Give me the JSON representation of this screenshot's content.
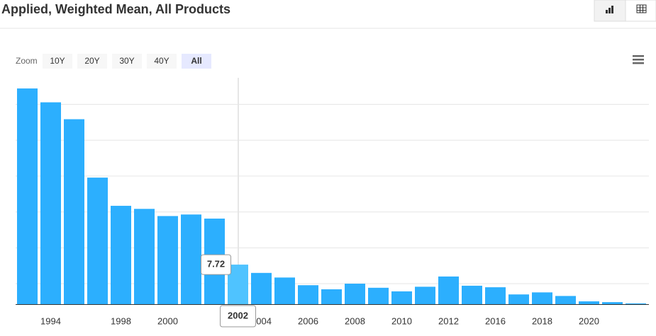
{
  "chart_data": {
    "type": "bar",
    "title": "Applied, Weighted Mean, All Products",
    "zoom_label": "Zoom",
    "zoom_buttons": [
      "10Y",
      "20Y",
      "30Y",
      "40Y",
      "All"
    ],
    "zoom_active": 4,
    "categories": [
      null,
      "1994",
      null,
      null,
      "1998",
      null,
      "2000",
      null,
      null,
      "2002",
      "2004",
      null,
      "2006",
      null,
      "2008",
      null,
      "2010",
      null,
      "2012",
      null,
      "2016",
      null,
      "2018",
      null,
      "2020",
      null,
      null
    ],
    "values": [
      42.1,
      39.4,
      36.1,
      24.7,
      19.2,
      18.6,
      17.2,
      17.5,
      16.7,
      7.72,
      6.1,
      5.2,
      3.7,
      2.9,
      4.0,
      3.2,
      2.5,
      3.4,
      5.4,
      3.6,
      3.3,
      1.9,
      2.3,
      1.6,
      0.55,
      0.4,
      0.15
    ],
    "color": "#2caffe",
    "highlight_color": "#4fc3ff",
    "tooltip_index": 9,
    "ylim": [
      0,
      42.8
    ],
    "yticks": [
      4,
      11,
      18,
      25,
      32,
      39
    ],
    "grid": true
  }
}
